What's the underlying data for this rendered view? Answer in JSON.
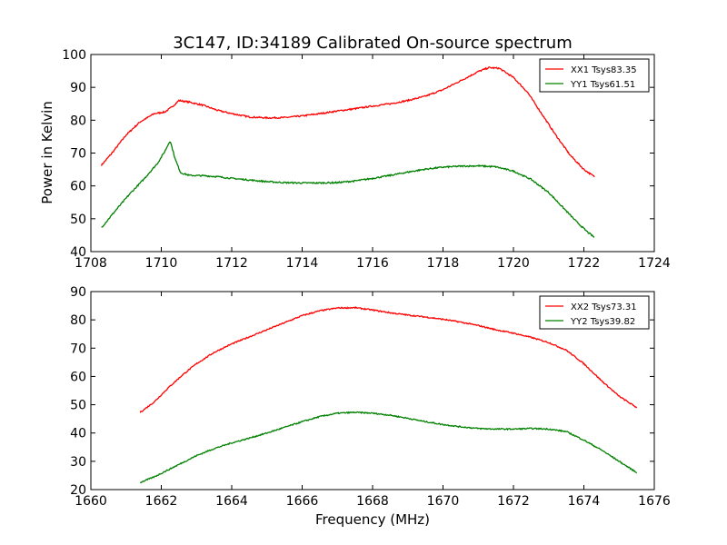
{
  "figure": {
    "title": "3C147, ID:34189 Calibrated On-source spectrum",
    "ylabel": "Power in Kelvin",
    "xlabel": "Frequency (MHz)"
  },
  "chart_data": [
    {
      "type": "line",
      "xlim": [
        1708,
        1724
      ],
      "ylim": [
        40,
        100
      ],
      "xticks": [
        1708,
        1710,
        1712,
        1714,
        1716,
        1718,
        1720,
        1722,
        1724
      ],
      "yticks": [
        40,
        50,
        60,
        70,
        80,
        90,
        100
      ],
      "legend_position": "top-right",
      "grid": false,
      "series": [
        {
          "name": "XX1 Tsys83.35",
          "color": "#ff0000",
          "x": [
            1708.3,
            1708.6,
            1709.0,
            1709.4,
            1709.8,
            1710.1,
            1710.3,
            1710.5,
            1710.8,
            1711.2,
            1711.6,
            1712.0,
            1712.5,
            1713.0,
            1713.5,
            1714.0,
            1714.5,
            1715.0,
            1715.5,
            1716.0,
            1716.5,
            1717.0,
            1717.5,
            1718.0,
            1718.5,
            1719.0,
            1719.3,
            1719.6,
            1720.0,
            1720.4,
            1720.8,
            1721.2,
            1721.6,
            1722.0,
            1722.3
          ],
          "y": [
            66.3,
            70,
            75.5,
            79.5,
            82,
            82.5,
            84,
            86,
            85.5,
            84.5,
            83,
            82,
            81,
            80.7,
            80.8,
            81.3,
            82,
            82.8,
            83.5,
            84.3,
            85,
            86,
            87.3,
            89.3,
            92,
            94.8,
            96,
            95.8,
            93,
            88.5,
            82,
            75.5,
            69.5,
            65,
            62.8
          ]
        },
        {
          "name": "YY1 Tsys61.51",
          "color": "#008000",
          "x": [
            1708.3,
            1708.7,
            1709.1,
            1709.5,
            1709.9,
            1710.1,
            1710.25,
            1710.4,
            1710.55,
            1710.8,
            1711.2,
            1711.6,
            1712.0,
            1712.5,
            1713.0,
            1713.5,
            1714.0,
            1714.5,
            1715.0,
            1715.5,
            1716.0,
            1716.5,
            1717.0,
            1717.5,
            1718.0,
            1718.5,
            1719.0,
            1719.5,
            1720.0,
            1720.5,
            1721.0,
            1721.4,
            1721.8,
            1722.1,
            1722.3
          ],
          "y": [
            47.3,
            52.5,
            57.5,
            62,
            67,
            70.5,
            73.8,
            68,
            64,
            63.2,
            63.1,
            62.8,
            62.3,
            61.8,
            61.3,
            61,
            60.9,
            60.9,
            61,
            61.5,
            62.3,
            63.2,
            64.2,
            65.1,
            65.7,
            66,
            66.1,
            65.8,
            64.5,
            62,
            58,
            53.5,
            49,
            46,
            44.3
          ]
        }
      ]
    },
    {
      "type": "line",
      "xlim": [
        1660,
        1676
      ],
      "ylim": [
        20,
        90
      ],
      "xticks": [
        1660,
        1662,
        1664,
        1666,
        1668,
        1670,
        1672,
        1674,
        1676
      ],
      "yticks": [
        20,
        30,
        40,
        50,
        60,
        70,
        80,
        90
      ],
      "legend_position": "top-right",
      "grid": false,
      "series": [
        {
          "name": "XX2 Tsys73.31",
          "color": "#ff0000",
          "x": [
            1661.4,
            1661.8,
            1662.2,
            1662.6,
            1663.0,
            1663.5,
            1664.0,
            1664.5,
            1665.0,
            1665.5,
            1666.0,
            1666.5,
            1667.0,
            1667.5,
            1668.0,
            1668.5,
            1669.0,
            1669.5,
            1670.0,
            1670.5,
            1671.0,
            1671.5,
            1672.0,
            1672.5,
            1673.0,
            1673.5,
            1674.0,
            1674.5,
            1675.0,
            1675.5
          ],
          "y": [
            47.3,
            51,
            56,
            60.5,
            64.5,
            68.5,
            71.5,
            74,
            76.5,
            79,
            81.5,
            83.2,
            84.2,
            84.3,
            83.5,
            82.5,
            81.7,
            81,
            80.2,
            79.2,
            78,
            76.5,
            75.3,
            73.8,
            72,
            69.3,
            64.5,
            58.5,
            53,
            49
          ]
        },
        {
          "name": "YY2 Tsys39.82",
          "color": "#008000",
          "x": [
            1661.4,
            1661.8,
            1662.2,
            1662.6,
            1663.0,
            1663.5,
            1664.0,
            1664.5,
            1665.0,
            1665.5,
            1666.0,
            1666.5,
            1667.0,
            1667.5,
            1668.0,
            1668.5,
            1669.0,
            1669.5,
            1670.0,
            1670.5,
            1671.0,
            1671.5,
            1672.0,
            1672.5,
            1673.0,
            1673.5,
            1674.0,
            1674.5,
            1675.0,
            1675.5
          ],
          "y": [
            22.5,
            24.5,
            27,
            29.5,
            32,
            34.5,
            36.5,
            38.2,
            40,
            42,
            44,
            45.8,
            47,
            47.3,
            47,
            46.3,
            45.2,
            44,
            43,
            42.2,
            41.6,
            41.4,
            41.4,
            41.6,
            41.4,
            40.5,
            37.5,
            34,
            30,
            26
          ]
        }
      ]
    }
  ]
}
